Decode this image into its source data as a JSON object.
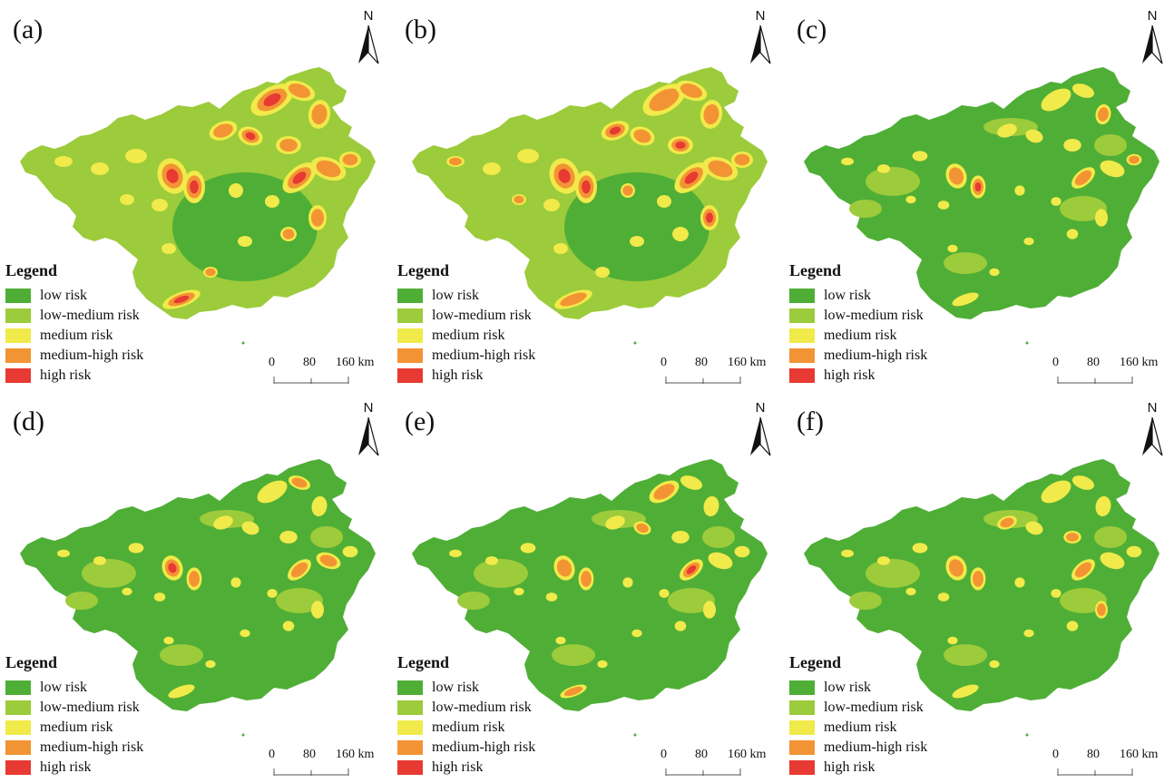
{
  "legend": {
    "title": "Legend",
    "items": [
      {
        "label": "low risk",
        "color": "#4fae36"
      },
      {
        "label": "low-medium risk",
        "color": "#9ccb3b"
      },
      {
        "label": "medium risk",
        "color": "#f0ea4a"
      },
      {
        "label": "medium-high risk",
        "color": "#f39434"
      },
      {
        "label": "high risk",
        "color": "#e73a32"
      }
    ]
  },
  "north_label": "N",
  "scale": {
    "ticks": [
      "0",
      "80",
      "160 km"
    ]
  },
  "panels": [
    {
      "label": "(a)",
      "hotspot_level": "high"
    },
    {
      "label": "(b)",
      "hotspot_level": "high"
    },
    {
      "label": "(c)",
      "hotspot_level": "medium"
    },
    {
      "label": "(d)",
      "hotspot_level": "medium"
    },
    {
      "label": "(e)",
      "hotspot_level": "medium"
    },
    {
      "label": "(f)",
      "hotspot_level": "medium"
    }
  ]
}
